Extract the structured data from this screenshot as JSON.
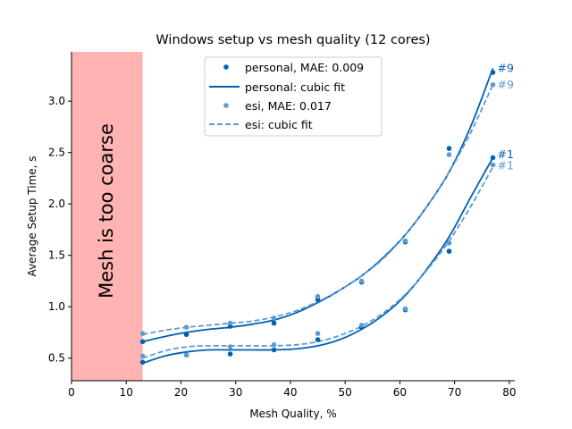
{
  "chart_data": {
    "type": "scatter",
    "title": "Windows setup vs mesh quality (12 cores)",
    "xlabel": "Mesh Quality, %",
    "ylabel": "Average Setup Time, s",
    "xlim": [
      0,
      81
    ],
    "ylim": [
      0.28,
      3.48
    ],
    "xticks": [
      0,
      10,
      20,
      30,
      40,
      50,
      60,
      70,
      80
    ],
    "yticks": [
      0.5,
      1.0,
      1.5,
      2.0,
      2.5,
      3.0
    ],
    "ytick_labels": [
      "0.5",
      "1.0",
      "1.5",
      "2.0",
      "2.5",
      "3.0"
    ],
    "grid": false,
    "legend_position": "top-center",
    "shaded_region": {
      "x_range": [
        0,
        13
      ],
      "label": "Mesh is too coarse",
      "color": "#ffb3b3"
    },
    "series": [
      {
        "name": "personal, MAE: 0.009",
        "kind": "points",
        "color": "#0060b0",
        "groups": [
          {
            "x": [
              13,
              21,
              29,
              37,
              45,
              53,
              61,
              69,
              77
            ],
            "y": [
              0.46,
              0.53,
              0.54,
              0.58,
              0.68,
              0.8,
              0.97,
              1.54,
              2.45
            ]
          },
          {
            "x": [
              13,
              21,
              29,
              37,
              45,
              53,
              61,
              69,
              77
            ],
            "y": [
              0.66,
              0.73,
              0.81,
              0.84,
              1.07,
              1.24,
              1.63,
              2.54,
              3.28
            ]
          }
        ]
      },
      {
        "name": "personal: cubic fit",
        "kind": "line",
        "color": "#0060b0",
        "dashed": false,
        "curves": [
          {
            "x": [
              13,
              17,
              21,
              25,
              29,
              33,
              37,
              41,
              45,
              49,
              53,
              57,
              61,
              65,
              69,
              73,
              77
            ],
            "y": [
              0.45,
              0.52,
              0.56,
              0.58,
              0.58,
              0.58,
              0.58,
              0.59,
              0.62,
              0.68,
              0.78,
              0.92,
              1.11,
              1.37,
              1.68,
              2.07,
              2.45
            ]
          },
          {
            "x": [
              13,
              17,
              21,
              25,
              29,
              33,
              37,
              41,
              45,
              49,
              53,
              57,
              61,
              65,
              69,
              73,
              77
            ],
            "y": [
              0.66,
              0.71,
              0.75,
              0.78,
              0.8,
              0.83,
              0.87,
              0.94,
              1.04,
              1.16,
              1.3,
              1.48,
              1.7,
              1.98,
              2.31,
              2.76,
              3.32
            ]
          }
        ]
      },
      {
        "name": "esi, MAE: 0.017",
        "kind": "points",
        "color": "#5b9bd5",
        "groups": [
          {
            "x": [
              13,
              21,
              29,
              37,
              45,
              53,
              61,
              69,
              77
            ],
            "y": [
              0.52,
              0.53,
              0.61,
              0.63,
              0.74,
              0.82,
              0.98,
              1.62,
              2.38
            ]
          },
          {
            "x": [
              13,
              21,
              29,
              37,
              45,
              53,
              61,
              69,
              77
            ],
            "y": [
              0.74,
              0.8,
              0.84,
              0.89,
              1.1,
              1.25,
              1.64,
              2.48,
              3.16
            ]
          }
        ]
      },
      {
        "name": "esi: cubic fit",
        "kind": "line",
        "color": "#5b9bd5",
        "dashed": true,
        "curves": [
          {
            "x": [
              13,
              17,
              21,
              25,
              29,
              33,
              37,
              41,
              45,
              49,
              53,
              57,
              61,
              65,
              69,
              73,
              77
            ],
            "y": [
              0.5,
              0.57,
              0.61,
              0.62,
              0.62,
              0.62,
              0.62,
              0.63,
              0.66,
              0.72,
              0.81,
              0.94,
              1.12,
              1.36,
              1.64,
              1.98,
              2.36
            ]
          },
          {
            "x": [
              13,
              17,
              21,
              25,
              29,
              33,
              37,
              41,
              45,
              49,
              53,
              57,
              61,
              65,
              69,
              73,
              77
            ],
            "y": [
              0.73,
              0.77,
              0.8,
              0.82,
              0.84,
              0.86,
              0.9,
              0.96,
              1.05,
              1.16,
              1.3,
              1.47,
              1.7,
              1.98,
              2.31,
              2.7,
              3.16
            ]
          }
        ]
      }
    ],
    "annotations": [
      {
        "text": "#9",
        "x": 77,
        "y": 3.32,
        "color": "#0060b0"
      },
      {
        "text": "#9",
        "x": 77,
        "y": 3.16,
        "color": "#5b9bd5"
      },
      {
        "text": "#1",
        "x": 77,
        "y": 2.48,
        "color": "#0060b0"
      },
      {
        "text": "#1",
        "x": 77,
        "y": 2.37,
        "color": "#5b9bd5"
      }
    ]
  }
}
